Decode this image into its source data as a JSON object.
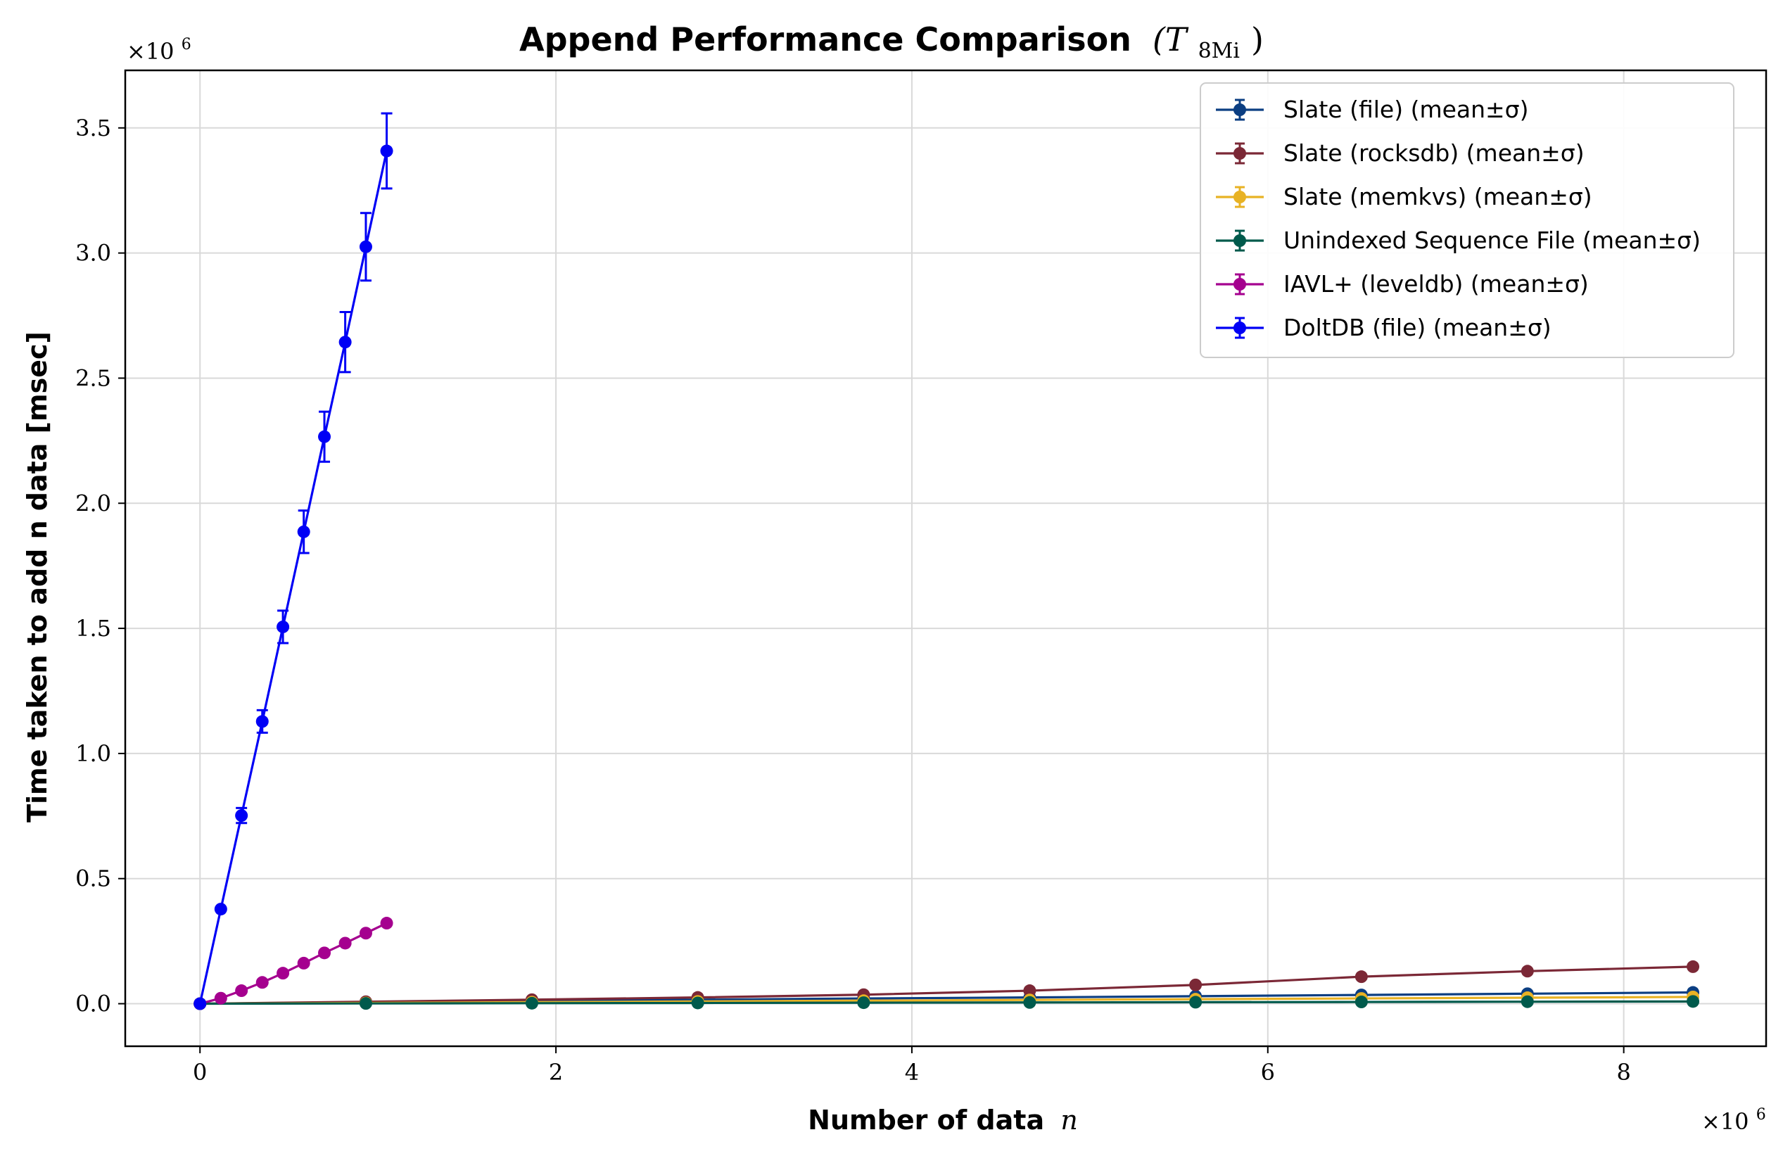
{
  "chart_data": {
    "type": "line",
    "title": "Append Performance Comparison",
    "title_math": "(T",
    "title_math_sub": "8Mi",
    "title_math_close": ")",
    "xlabel": "Number of data",
    "xlabel_var": "n",
    "ylabel": "Time taken to add n data [msec]",
    "x_multiplier": "×10",
    "x_multiplier_exp": "6",
    "y_multiplier": "×10",
    "y_multiplier_exp": "6",
    "x_scale": 1000000,
    "y_scale": 1000000,
    "xlim": [
      -0.42,
      8.8
    ],
    "ylim": [
      -0.17,
      3.73
    ],
    "x_ticks": [
      0,
      2,
      4,
      6,
      8
    ],
    "x_tick_labels": [
      "0",
      "2",
      "4",
      "6",
      "8"
    ],
    "y_ticks": [
      0,
      0.5,
      1,
      1.5,
      2,
      2.5,
      3,
      3.5
    ],
    "y_tick_labels": [
      "0.0",
      "0.5",
      "1.0",
      "1.5",
      "2.0",
      "2.5",
      "3.0",
      "3.5"
    ],
    "grid": true,
    "legend_position": "top-right",
    "series": [
      {
        "name": "Slate (file) (mean±σ)",
        "color": "#0b3e82",
        "x": [
          0,
          0.932,
          1.865,
          2.797,
          3.729,
          4.662,
          5.594,
          6.526,
          7.459,
          8.389
        ],
        "y": [
          0,
          0.006,
          0.011,
          0.016,
          0.021,
          0.025,
          0.03,
          0.035,
          0.04,
          0.045
        ],
        "err": [
          0,
          0,
          0,
          0,
          0,
          0,
          0,
          0,
          0,
          0
        ]
      },
      {
        "name": "Slate (rocksdb) (mean±σ)",
        "color": "#7b2836",
        "x": [
          0,
          0.932,
          1.865,
          2.797,
          3.729,
          4.662,
          5.594,
          6.526,
          7.459,
          8.389
        ],
        "y": [
          0,
          0.008,
          0.016,
          0.025,
          0.036,
          0.052,
          0.075,
          0.108,
          0.13,
          0.148
        ],
        "err": [
          0,
          0,
          0,
          0,
          0,
          0,
          0,
          0,
          0,
          0
        ]
      },
      {
        "name": "Slate (memkvs) (mean±σ)",
        "color": "#e8b224",
        "x": [
          0,
          0.932,
          1.865,
          2.797,
          3.729,
          4.662,
          5.594,
          6.526,
          7.459,
          8.389
        ],
        "y": [
          0,
          0.003,
          0.006,
          0.009,
          0.012,
          0.015,
          0.018,
          0.021,
          0.024,
          0.027
        ],
        "err": [
          0,
          0,
          0,
          0,
          0,
          0,
          0,
          0,
          0,
          0
        ]
      },
      {
        "name": "Unindexed Sequence File (mean±σ)",
        "color": "#005a4c",
        "x": [
          0,
          0.932,
          1.865,
          2.797,
          3.729,
          4.662,
          5.594,
          6.526,
          7.459,
          8.389
        ],
        "y": [
          0,
          0.001,
          0.002,
          0.003,
          0.004,
          0.005,
          0.006,
          0.007,
          0.008,
          0.009
        ],
        "err": [
          0,
          0,
          0,
          0,
          0,
          0,
          0,
          0,
          0,
          0
        ]
      },
      {
        "name": "IAVL+ (leveldb) (mean±σ)",
        "color": "#a5008f",
        "x": [
          0,
          0.117,
          0.233,
          0.35,
          0.466,
          0.583,
          0.699,
          0.816,
          0.932,
          1.049
        ],
        "y": [
          0,
          0.022,
          0.052,
          0.085,
          0.122,
          0.162,
          0.203,
          0.242,
          0.282,
          0.322
        ],
        "err": [
          0,
          0,
          0,
          0,
          0,
          0,
          0,
          0,
          0,
          0
        ]
      },
      {
        "name": "DoltDB (file) (mean±σ)",
        "color": "#0000f5",
        "x": [
          0,
          0.117,
          0.233,
          0.35,
          0.466,
          0.583,
          0.699,
          0.816,
          0.932,
          1.049
        ],
        "y": [
          0,
          0.378,
          0.752,
          1.128,
          1.506,
          1.886,
          2.266,
          2.644,
          3.025,
          3.408
        ],
        "err": [
          0,
          0,
          0.03,
          0.045,
          0.065,
          0.085,
          0.1,
          0.12,
          0.135,
          0.15
        ]
      }
    ]
  }
}
